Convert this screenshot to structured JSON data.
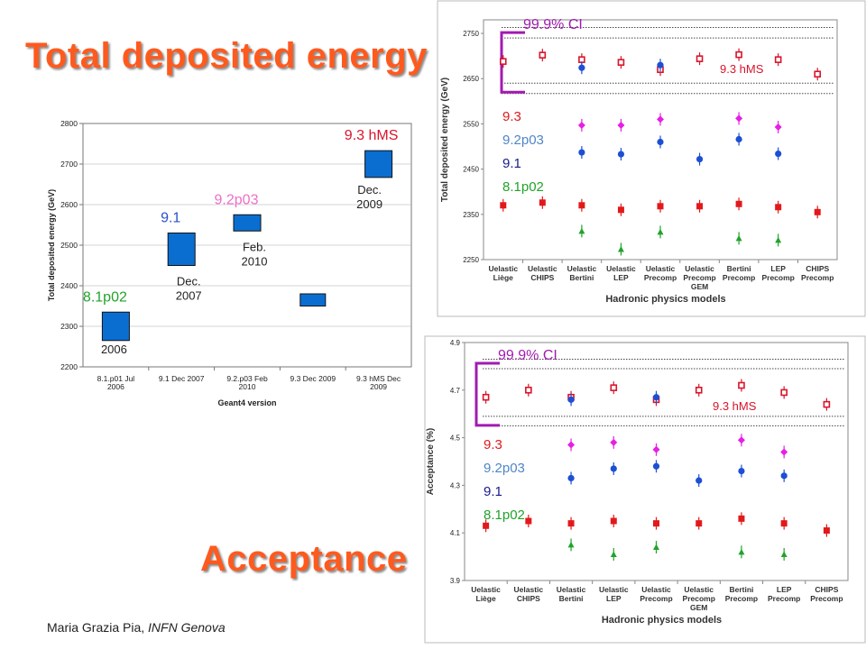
{
  "titles": {
    "total_energy": "Total deposited energy",
    "acceptance": "Acceptance"
  },
  "footer": {
    "author": "Maria Grazia Pia,",
    "affiliation": "INFN Genova"
  },
  "colors": {
    "title": "#ff5a1e",
    "v93": "#e2191b",
    "v92p03": "#e61ee6",
    "v91": "#1d4fd4",
    "v81p02": "#21a32a",
    "v93hMS": "#d9142a",
    "ci": "#a11bb0",
    "label_v92p03": "#4f86c6",
    "label_v91": "#1a1a8c",
    "label_hms": "#d9142a",
    "label_8_1": "#21a32a",
    "label_9_1": "#2a50c8",
    "label_9_2": "#ee6fc9",
    "bar_fill": "#0a6ed1"
  },
  "chart_data": [
    {
      "type": "bar",
      "ylabel": "Total deposited energy (GeV)",
      "xlabel": "Geant4 version",
      "ylim": [
        2200,
        2800
      ],
      "yticks": [
        "2200",
        "2300",
        "2400",
        "2500",
        "2600",
        "2700",
        "2800"
      ],
      "categories": [
        "8.1.p01 Jul 2006",
        "9.1 Dec 2007",
        "9.2.p03 Feb 2010",
        "9.3 Dec 2009",
        "9.3 hMS Dec 2009"
      ],
      "category_labels": [
        [
          "8.1.p01 Jul",
          "2006"
        ],
        [
          "9.1 Dec 2007"
        ],
        [
          "9.2.p03 Feb",
          "2010"
        ],
        [
          "9.3 Dec 2009"
        ],
        [
          "9.3 hMS Dec",
          "2009"
        ]
      ],
      "boxes": [
        {
          "low": 2265,
          "high": 2335
        },
        {
          "low": 2450,
          "high": 2530
        },
        {
          "low": 2535,
          "high": 2575
        },
        {
          "low": 2350,
          "high": 2380
        },
        {
          "low": 2667,
          "high": 2733
        }
      ],
      "version_labels": [
        {
          "text": "8.1p02",
          "color_key": "label_8_1",
          "category": 0
        },
        {
          "text": "9.1",
          "color_key": "label_9_1",
          "category": 1
        },
        {
          "text": "9.2p03",
          "color_key": "label_9_2",
          "category": 2
        },
        {
          "text": "9.3 hMS",
          "color_key": "label_hms",
          "category": 4
        }
      ],
      "date_labels": [
        {
          "lines": [
            "2006"
          ],
          "category": 0
        },
        {
          "lines": [
            "Dec.",
            "2007"
          ],
          "category": 1
        },
        {
          "lines": [
            "Feb.",
            "2010"
          ],
          "category": 2
        },
        {
          "lines": [
            "Dec.",
            "2009"
          ],
          "category": 4
        }
      ]
    },
    {
      "type": "scatter",
      "ylabel": "Total deposited energy (GeV)",
      "xlabel": "Hadronic physics models",
      "ylim": [
        2250,
        2780
      ],
      "yticks": [
        "2250",
        "2350",
        "2450",
        "2550",
        "2650",
        "2750"
      ],
      "categories": [
        [
          "Uelastic",
          "Liège"
        ],
        [
          "Uelastic",
          "CHIPS"
        ],
        [
          "Uelastic",
          "Bertini"
        ],
        [
          "Uelastic",
          "LEP"
        ],
        [
          "Uelastic",
          "Precomp"
        ],
        [
          "Uelastic",
          "Precomp",
          "GEM"
        ],
        [
          "Bertini",
          "Precomp"
        ],
        [
          "LEP",
          "Precomp"
        ],
        [
          "CHIPS",
          "Precomp"
        ]
      ],
      "ci_label": "99.9% CI",
      "ci_lines": [
        2763,
        2740,
        2640,
        2617
      ],
      "legend": [
        {
          "text": "9.3",
          "color_key": "v93"
        },
        {
          "text": "9.2p03",
          "color_key": "label_v92p03"
        },
        {
          "text": "9.1",
          "color_key": "label_v91"
        },
        {
          "text": "8.1p02",
          "color_key": "v81p02"
        }
      ],
      "hms_label": "9.3 hMS",
      "series": [
        {
          "name": "9.3 hMS",
          "color_key": "v93hMS",
          "marker": "open-square",
          "values": [
            2688,
            2702,
            2692,
            2686,
            2670,
            2694,
            2703,
            2692,
            2660
          ]
        },
        {
          "name": "9.2p03",
          "color_key": "v92p03",
          "marker": "diamond",
          "values": [
            null,
            null,
            2547,
            2547,
            2560,
            null,
            2562,
            2543,
            null
          ]
        },
        {
          "name": "9.1",
          "color_key": "v91",
          "marker": "circle",
          "values": [
            null,
            null,
            2487,
            2483,
            2510,
            2472,
            2516,
            2484,
            null
          ]
        },
        {
          "name": "9.3",
          "color_key": "v93",
          "marker": "filled-square",
          "values": [
            2370,
            2376,
            2370,
            2360,
            2368,
            2368,
            2373,
            2366,
            2355
          ]
        },
        {
          "name": "8.1p02",
          "color_key": "v81p02",
          "marker": "triangle",
          "values": [
            null,
            null,
            2313,
            2273,
            2311,
            null,
            2297,
            2293,
            null
          ]
        },
        {
          "name": "9.1 alt",
          "color_key": "v91",
          "marker": "circle",
          "values": [
            null,
            null,
            2674,
            null,
            2680,
            null,
            null,
            null,
            null
          ]
        }
      ]
    },
    {
      "type": "scatter",
      "ylabel": "Acceptance (%)",
      "xlabel": "Hadronic physics models",
      "ylim": [
        3.9,
        4.9
      ],
      "yticks": [
        "3.9",
        "4.1",
        "4.3",
        "4.5",
        "4.7",
        "4.9"
      ],
      "categories": [
        [
          "Uelastic",
          "Liège"
        ],
        [
          "Uelastic",
          "CHIPS"
        ],
        [
          "Uelastic",
          "Bertini"
        ],
        [
          "Uelastic",
          "LEP"
        ],
        [
          "Uelastic",
          "Precomp"
        ],
        [
          "Uelastic",
          "Precomp",
          "GEM"
        ],
        [
          "Bertini",
          "Precomp"
        ],
        [
          "LEP",
          "Precomp"
        ],
        [
          "CHIPS",
          "Precomp"
        ]
      ],
      "ci_label": "99.9% CI",
      "ci_lines": [
        4.83,
        4.79,
        4.59,
        4.55
      ],
      "legend": [
        {
          "text": "9.3",
          "color_key": "v93"
        },
        {
          "text": "9.2p03",
          "color_key": "label_v92p03"
        },
        {
          "text": "9.1",
          "color_key": "label_v91"
        },
        {
          "text": "8.1p02",
          "color_key": "v81p02"
        }
      ],
      "hms_label": "9.3 hMS",
      "series": [
        {
          "name": "9.3 hMS",
          "color_key": "v93hMS",
          "marker": "open-square",
          "values": [
            4.67,
            4.7,
            4.67,
            4.71,
            4.66,
            4.7,
            4.72,
            4.69,
            4.64
          ]
        },
        {
          "name": "9.2p03",
          "color_key": "v92p03",
          "marker": "diamond",
          "values": [
            null,
            null,
            4.47,
            4.48,
            4.45,
            null,
            4.49,
            4.44,
            null
          ]
        },
        {
          "name": "9.1",
          "color_key": "v91",
          "marker": "circle",
          "values": [
            null,
            null,
            4.33,
            4.37,
            4.38,
            4.32,
            4.36,
            4.34,
            null
          ]
        },
        {
          "name": "9.3",
          "color_key": "v93",
          "marker": "filled-square",
          "values": [
            4.13,
            4.15,
            4.14,
            4.15,
            4.14,
            4.14,
            4.16,
            4.14,
            4.11
          ]
        },
        {
          "name": "8.1p02",
          "color_key": "v81p02",
          "marker": "triangle",
          "values": [
            null,
            null,
            4.05,
            4.01,
            4.04,
            null,
            4.02,
            4.01,
            null
          ]
        },
        {
          "name": "9.1 alt",
          "color_key": "v91",
          "marker": "circle",
          "values": [
            null,
            null,
            4.66,
            null,
            4.67,
            null,
            null,
            null,
            null
          ]
        }
      ]
    }
  ]
}
